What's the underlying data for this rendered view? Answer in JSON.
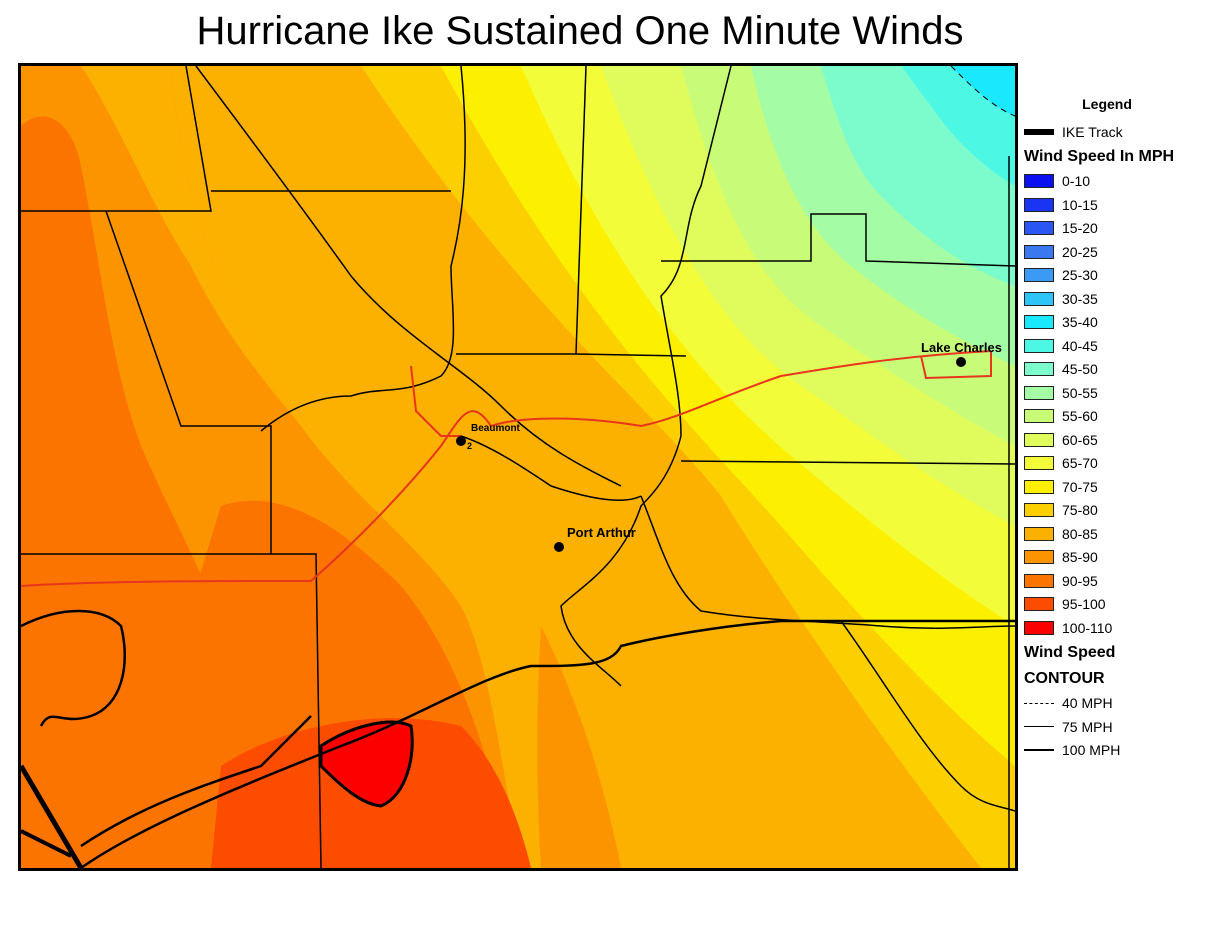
{
  "title": "Hurricane Ike Sustained One Minute Winds",
  "map": {
    "cities": [
      {
        "name": "Lake Charles"
      },
      {
        "name": "Beaumont"
      },
      {
        "name": "Port Arthur"
      }
    ],
    "route_marker": "2"
  },
  "legend": {
    "heading": "Legend",
    "track_label": "IKE Track",
    "wind_speed_heading": "Wind Speed In MPH",
    "classes": [
      {
        "label": "0-10",
        "color": "#0a10f0"
      },
      {
        "label": "10-15",
        "color": "#1a34f4"
      },
      {
        "label": "15-20",
        "color": "#2a56f4"
      },
      {
        "label": "20-25",
        "color": "#3a78f0"
      },
      {
        "label": "25-30",
        "color": "#3a9af4"
      },
      {
        "label": "30-35",
        "color": "#2ec4f8"
      },
      {
        "label": "35-40",
        "color": "#1ae8fc"
      },
      {
        "label": "40-45",
        "color": "#4cf8e4"
      },
      {
        "label": "45-50",
        "color": "#7cfccc"
      },
      {
        "label": "50-55",
        "color": "#a4fca4"
      },
      {
        "label": "55-60",
        "color": "#c8fc78"
      },
      {
        "label": "60-65",
        "color": "#e0fc5c"
      },
      {
        "label": "65-70",
        "color": "#f2fc38"
      },
      {
        "label": "70-75",
        "color": "#fcf000"
      },
      {
        "label": "75-80",
        "color": "#fcd000"
      },
      {
        "label": "80-85",
        "color": "#fcb000"
      },
      {
        "label": "85-90",
        "color": "#fc9400"
      },
      {
        "label": "90-95",
        "color": "#fc7400"
      },
      {
        "label": "95-100",
        "color": "#fc4c00"
      },
      {
        "label": "100-110",
        "color": "#fc0000"
      }
    ],
    "contour_heading_1": "Wind Speed",
    "contour_heading_2": "CONTOUR",
    "contours": [
      {
        "label": "40 MPH",
        "style": "dashed"
      },
      {
        "label": "75 MPH",
        "style": "thin"
      },
      {
        "label": "100 MPH",
        "style": "thick"
      }
    ]
  },
  "colors": {
    "highway": "#e8361c",
    "boundary": "#000000"
  }
}
